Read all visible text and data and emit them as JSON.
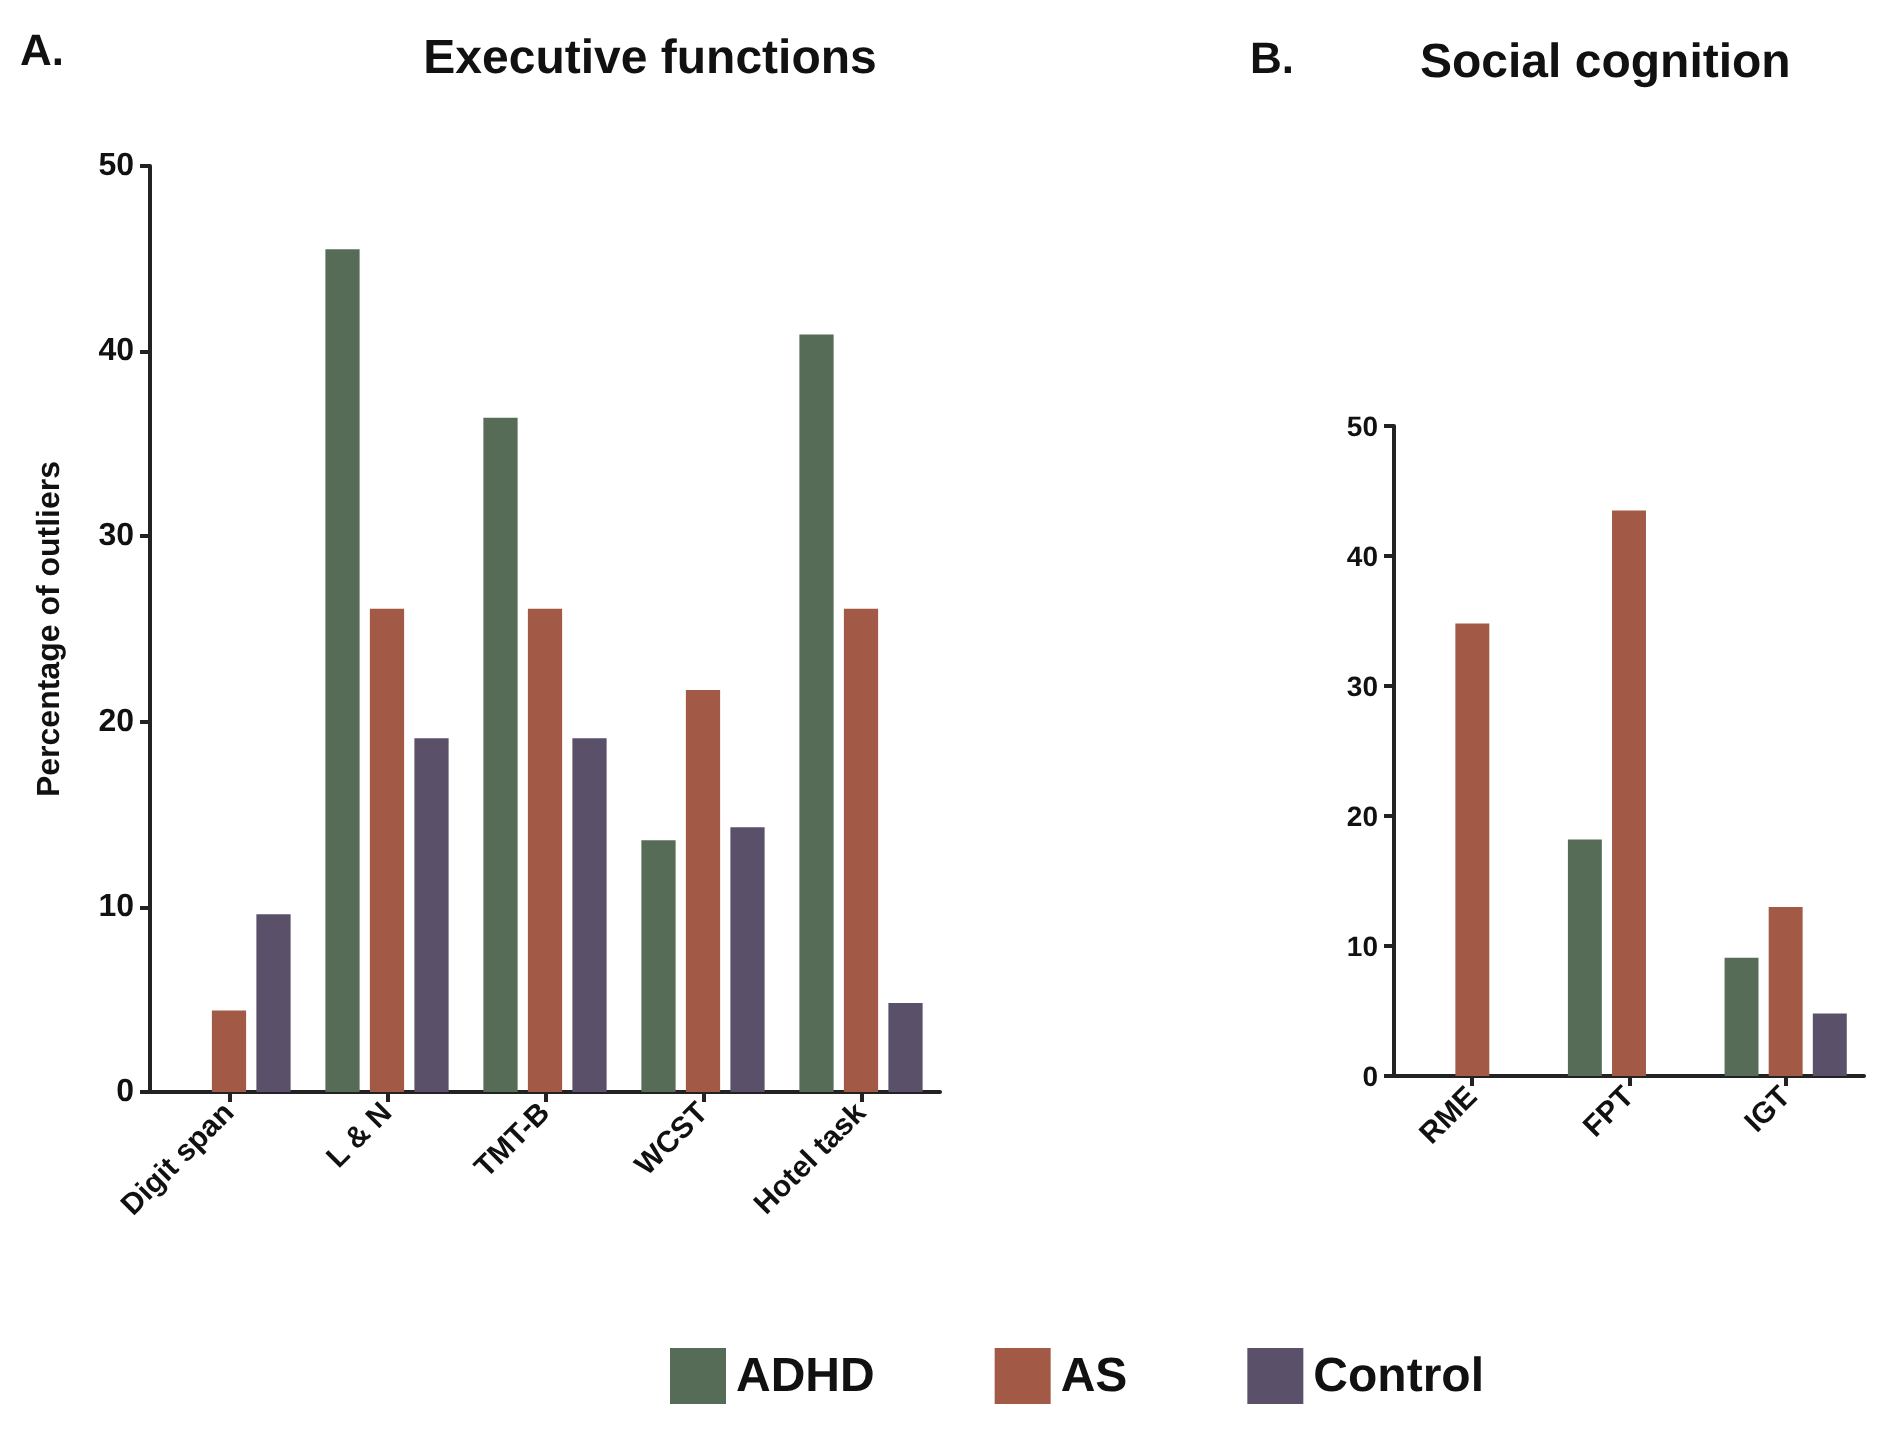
{
  "chart_data": [
    {
      "type": "bar",
      "title": "Executive functions",
      "ylabel": "Percentage of outliers",
      "annotations": [
        "A."
      ],
      "categories": [
        "Digit span",
        "L & N",
        "TMT-B",
        "WCST",
        "Hotel task"
      ],
      "series": [
        {
          "name": "ADHD",
          "color": "#566c57",
          "values": [
            0,
            45.5,
            36.4,
            13.6,
            40.9
          ]
        },
        {
          "name": "AS",
          "color": "#a25946",
          "values": [
            4.4,
            26.1,
            26.1,
            21.7,
            26.1
          ]
        },
        {
          "name": "Control",
          "color": "#5a5069",
          "values": [
            9.6,
            19.1,
            19.1,
            14.3,
            4.8
          ]
        }
      ],
      "ylim": [
        0,
        50
      ],
      "yticks": [
        0,
        10,
        20,
        30,
        40,
        50
      ],
      "grid": false,
      "legend": "bottom"
    },
    {
      "type": "bar",
      "title": "Social cognition",
      "annotations": [
        "B."
      ],
      "categories": [
        "RME",
        "FPT",
        "IGT"
      ],
      "series": [
        {
          "color": "#566c57",
          "values": [
            0,
            18.2,
            9.1
          ]
        },
        {
          "color": "#a25946",
          "values": [
            34.8,
            43.5,
            13.0
          ]
        },
        {
          "color": "#5a5069",
          "values": [
            0,
            0,
            4.8
          ]
        }
      ],
      "ylim": [
        0,
        50
      ],
      "yticks": [
        0,
        10,
        20,
        30,
        40,
        50
      ],
      "grid": false,
      "legend": false
    }
  ]
}
